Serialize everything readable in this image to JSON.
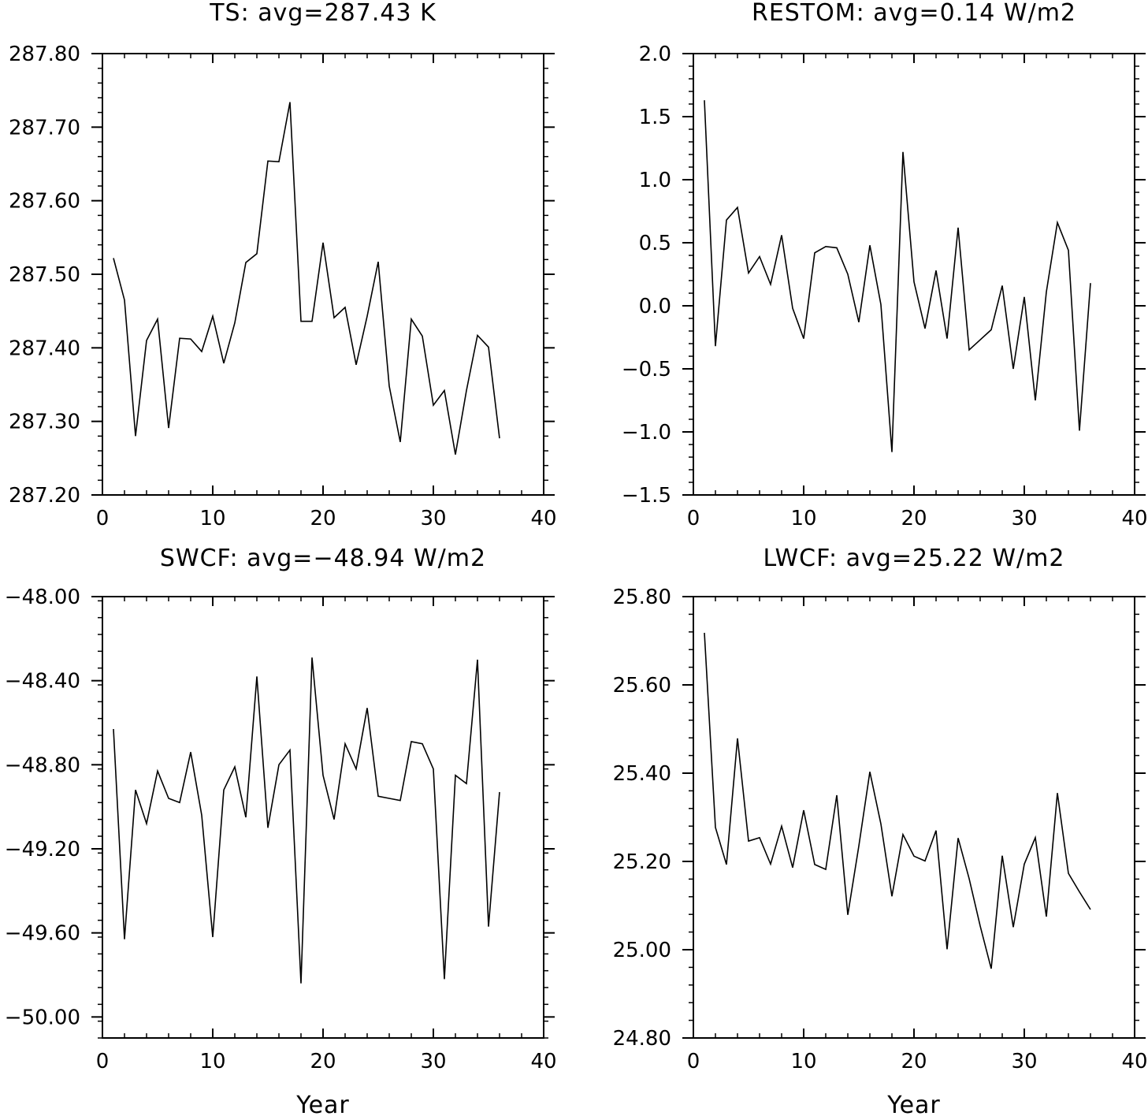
{
  "line_color": "#000000",
  "chart_data": [
    {
      "type": "line",
      "title": "TS: avg=287.43 K",
      "xlabel": "",
      "ylabel": "",
      "xlim": [
        0,
        40
      ],
      "ylim": [
        287.2,
        287.8
      ],
      "x_ticks": [
        0,
        10,
        20,
        30,
        40
      ],
      "x_tick_labels": [
        "0",
        "10",
        "20",
        "30",
        "40"
      ],
      "y_ticks": [
        287.2,
        287.3,
        287.4,
        287.5,
        287.6,
        287.7,
        287.8
      ],
      "y_tick_labels": [
        "287.20",
        "287.30",
        "287.40",
        "287.50",
        "287.60",
        "287.70",
        "287.80"
      ],
      "grid": false,
      "x": [
        1,
        2,
        3,
        4,
        5,
        6,
        7,
        8,
        9,
        10,
        11,
        12,
        13,
        14,
        15,
        16,
        17,
        18,
        19,
        20,
        21,
        22,
        23,
        24,
        25,
        26,
        27,
        28,
        29,
        30,
        31,
        32,
        33,
        34,
        35,
        36
      ],
      "values": [
        287.522,
        287.465,
        287.28,
        287.41,
        287.439,
        287.291,
        287.413,
        287.412,
        287.395,
        287.443,
        287.379,
        287.434,
        287.516,
        287.528,
        287.654,
        287.653,
        287.734,
        287.436,
        287.436,
        287.543,
        287.441,
        287.455,
        287.377,
        287.443,
        287.517,
        287.348,
        287.272,
        287.439,
        287.416,
        287.322,
        287.342,
        287.255,
        287.342,
        287.417,
        287.401,
        287.277
      ]
    },
    {
      "type": "line",
      "title": "RESTOM: avg=0.14 W/m2",
      "xlabel": "",
      "ylabel": "",
      "xlim": [
        0,
        40
      ],
      "ylim": [
        -1.5,
        2.0
      ],
      "x_ticks": [
        0,
        10,
        20,
        30,
        40
      ],
      "x_tick_labels": [
        "0",
        "10",
        "20",
        "30",
        "40"
      ],
      "y_ticks": [
        -1.5,
        -1.0,
        -0.5,
        0.0,
        0.5,
        1.0,
        1.5,
        2.0
      ],
      "y_tick_labels": [
        "−1.5",
        "−1.0",
        "−0.5",
        "0.0",
        "0.5",
        "1.0",
        "1.5",
        "2.0"
      ],
      "grid": false,
      "x": [
        1,
        2,
        3,
        4,
        5,
        6,
        7,
        8,
        9,
        10,
        11,
        12,
        13,
        14,
        15,
        16,
        17,
        18,
        19,
        20,
        21,
        22,
        23,
        24,
        25,
        26,
        27,
        28,
        29,
        30,
        31,
        32,
        33,
        34,
        35,
        36
      ],
      "values": [
        1.63,
        -0.32,
        0.68,
        0.78,
        0.26,
        0.39,
        0.17,
        0.56,
        -0.02,
        -0.26,
        0.42,
        0.47,
        0.46,
        0.25,
        -0.13,
        0.48,
        0.01,
        -1.16,
        1.22,
        0.19,
        -0.18,
        0.28,
        -0.26,
        0.62,
        -0.35,
        -0.27,
        -0.19,
        0.16,
        -0.5,
        0.07,
        -0.75,
        0.11,
        0.66,
        0.44,
        -0.99,
        0.18
      ]
    },
    {
      "type": "line",
      "title": "SWCF: avg=−48.94 W/m2",
      "xlabel": "Year",
      "ylabel": "",
      "xlim": [
        0,
        40
      ],
      "ylim": [
        -50.1,
        -48.0
      ],
      "x_ticks": [
        0,
        10,
        20,
        30,
        40
      ],
      "x_tick_labels": [
        "0",
        "10",
        "20",
        "30",
        "40"
      ],
      "y_ticks": [
        -50.0,
        -49.6,
        -49.2,
        -48.8,
        -48.4,
        -48.0
      ],
      "y_tick_labels": [
        "−50.00",
        "−49.60",
        "−49.20",
        "−48.80",
        "−48.40",
        "−48.00"
      ],
      "grid": false,
      "x": [
        1,
        2,
        3,
        4,
        5,
        6,
        7,
        8,
        9,
        10,
        11,
        12,
        13,
        14,
        15,
        16,
        17,
        18,
        19,
        20,
        21,
        22,
        23,
        24,
        25,
        26,
        27,
        28,
        29,
        30,
        31,
        32,
        33,
        34,
        35,
        36
      ],
      "values": [
        -48.63,
        -49.63,
        -48.92,
        -49.08,
        -48.83,
        -48.96,
        -48.98,
        -48.74,
        -49.04,
        -49.62,
        -48.92,
        -48.81,
        -49.05,
        -48.38,
        -49.1,
        -48.8,
        -48.73,
        -49.84,
        -48.29,
        -48.85,
        -49.06,
        -48.7,
        -48.82,
        -48.53,
        -48.95,
        -48.96,
        -48.97,
        -48.69,
        -48.7,
        -48.82,
        -49.82,
        -48.85,
        -48.89,
        -48.3,
        -49.57,
        -48.93
      ]
    },
    {
      "type": "line",
      "title": "LWCF: avg=25.22 W/m2",
      "xlabel": "Year",
      "ylabel": "",
      "xlim": [
        0,
        40
      ],
      "ylim": [
        24.8,
        25.8
      ],
      "x_ticks": [
        0,
        10,
        20,
        30,
        40
      ],
      "x_tick_labels": [
        "0",
        "10",
        "20",
        "30",
        "40"
      ],
      "y_ticks": [
        24.8,
        25.0,
        25.2,
        25.4,
        25.6,
        25.8
      ],
      "y_tick_labels": [
        "24.80",
        "25.00",
        "25.20",
        "25.40",
        "25.60",
        "25.80"
      ],
      "grid": false,
      "x": [
        1,
        2,
        3,
        4,
        5,
        6,
        7,
        8,
        9,
        10,
        11,
        12,
        13,
        14,
        15,
        16,
        17,
        18,
        19,
        20,
        21,
        22,
        23,
        24,
        25,
        26,
        27,
        28,
        29,
        30,
        31,
        32,
        33,
        34,
        35,
        36
      ],
      "values": [
        25.718,
        25.277,
        25.193,
        25.479,
        25.246,
        25.254,
        25.194,
        25.28,
        25.186,
        25.316,
        25.193,
        25.182,
        25.35,
        25.079,
        25.235,
        25.403,
        25.285,
        25.121,
        25.261,
        25.212,
        25.201,
        25.27,
        25.001,
        25.253,
        25.161,
        25.054,
        24.957,
        25.213,
        25.051,
        25.194,
        25.254,
        25.075,
        25.355,
        25.173,
        25.131,
        25.091
      ]
    }
  ]
}
